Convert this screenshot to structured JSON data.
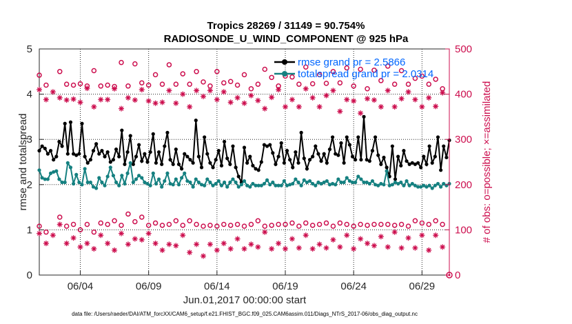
{
  "chart_data": {
    "type": "line",
    "title": "Tropics 28269 / 31149 = 90.754%",
    "subtitle": "RADIOSONDE_U_WIND_COMPONENT @ 925 hPa",
    "xlabel": "Jun.01,2017 00:00:00 start",
    "ylabel": "rmse and totalspread",
    "ylabel_right": "# of obs: o=possible; ×=assimilated",
    "footer": "data file: /Users/raeder/DAI/ATM_forcXX/CAM6_setup/f.e21.FHIST_BGC.f09_025.CAM6assim.011/Diags_NTrS_2017-06/obs_diag_output.nc",
    "x_ticks": [
      "06/04",
      "06/09",
      "06/14",
      "06/19",
      "06/24",
      "06/29"
    ],
    "x_tick_days": [
      4,
      9,
      14,
      19,
      24,
      29
    ],
    "xlim": [
      1.0,
      31.0
    ],
    "ylim": [
      0,
      5
    ],
    "y_ticks": [
      "0",
      "1",
      "2",
      "3",
      "4",
      "5"
    ],
    "ylim_right": [
      0,
      500
    ],
    "y_ticks_right": [
      "0",
      "100",
      "200",
      "300",
      "400",
      "500"
    ],
    "legend": [
      "rmse grand pr = 2.5866",
      "totalspread grand pr = 2.0314"
    ],
    "series": [
      {
        "name": "rmse",
        "color": "#000000",
        "values": [
          2.75,
          2.85,
          2.8,
          2.68,
          2.75,
          2.55,
          2.62,
          2.95,
          2.85,
          3.35,
          2.68,
          3.38,
          2.68,
          2.65,
          2.68,
          3.35,
          2.62,
          2.48,
          2.55,
          2.75,
          2.9,
          2.68,
          2.75,
          2.62,
          2.72,
          2.5,
          2.55,
          2.78,
          2.62,
          3.2,
          2.45,
          2.72,
          3.08,
          2.45,
          2.62,
          2.88,
          2.52,
          2.68,
          2.5,
          2.72,
          3.12,
          2.48,
          2.72,
          2.45,
          2.85,
          3.15,
          2.55,
          2.45,
          2.78,
          2.45,
          2.35,
          2.68,
          2.62,
          2.55,
          2.48,
          3.42,
          2.62,
          2.38,
          3.05,
          2.68,
          2.48,
          2.38,
          2.55,
          2.75,
          2.42,
          2.95,
          2.58,
          2.45,
          2.85,
          2.38,
          2.18,
          2.05,
          2.82,
          2.48,
          2.62,
          2.42,
          2.35,
          2.32,
          2.5,
          2.88,
          2.85,
          2.88,
          2.7,
          2.45,
          2.62,
          2.92,
          2.48,
          2.75,
          2.55,
          2.38,
          2.72,
          2.48,
          3.15,
          2.58,
          2.35,
          2.55,
          2.62,
          2.85,
          2.68,
          2.52,
          2.68,
          2.48,
          2.78,
          3.05,
          2.68,
          2.65,
          2.92,
          2.48,
          3.05,
          2.88,
          2.62,
          2.55,
          3.05,
          2.55,
          3.5,
          2.55,
          2.52,
          2.75,
          3.05,
          2.65,
          2.45,
          2.6,
          2.38,
          2.18,
          2.85,
          2.12,
          2.62,
          2.42,
          2.75,
          2.52,
          2.45,
          2.48,
          2.45,
          2.48,
          2.38,
          2.62,
          2.45,
          2.85,
          2.48,
          2.62,
          3.05,
          2.32,
          2.85,
          2.6,
          2.98
        ]
      },
      {
        "name": "totalspread",
        "color": "#158080",
        "values": [
          2.32,
          2.15,
          2.12,
          2.12,
          2.25,
          2.28,
          2.3,
          2.12,
          2.05,
          2.05,
          2.48,
          2.38,
          2.02,
          2.22,
          2.05,
          2.0,
          2.35,
          2.05,
          2.05,
          1.95,
          1.92,
          2.15,
          2.05,
          1.98,
          2.18,
          2.38,
          2.2,
          2.05,
          1.98,
          2.2,
          2.02,
          2.25,
          2.48,
          2.05,
          2.12,
          2.2,
          2.15,
          2.05,
          2.02,
          1.98,
          2.25,
          2.02,
          2.12,
          1.95,
          2.08,
          2.25,
          2.02,
          2.0,
          2.12,
          2.0,
          2.15,
          2.25,
          2.08,
          2.05,
          1.95,
          2.12,
          2.05,
          2.0,
          1.98,
          2.12,
          2.05,
          1.98,
          2.02,
          2.08,
          1.98,
          2.05,
          1.95,
          2.05,
          2.12,
          2.05,
          1.95,
          2.0,
          2.08,
          1.98,
          1.95,
          2.02,
          1.98,
          1.98,
          1.98,
          2.02,
          2.1,
          2.0,
          2.05,
          1.98,
          1.98,
          1.98,
          2.08,
          1.98,
          2.0,
          2.02,
          2.12,
          2.05,
          1.98,
          2.1,
          2.05,
          2.08,
          2.02,
          1.98,
          2.05,
          2.02,
          2.05,
          2.08,
          2.0,
          2.02,
          2.0,
          2.12,
          2.05,
          2.05,
          2.15,
          2.08,
          2.05,
          2.05,
          2.18,
          2.12,
          2.05,
          2.05,
          2.02,
          2.08,
          2.0,
          1.98,
          2.02,
          2.0,
          2.3,
          1.98,
          2.0,
          2.05,
          2.02,
          2.05,
          1.98,
          2.08,
          1.98,
          2.02,
          1.98,
          1.95,
          1.95,
          1.98,
          1.95,
          1.98,
          1.92,
          1.98,
          2.02,
          1.95,
          2.02,
          1.98,
          2.02
        ]
      }
    ],
    "possible_obs": {
      "high": [
        [
          1.0,
          442
        ],
        [
          1.5,
          420
        ],
        [
          2.5,
          450
        ],
        [
          3,
          422
        ],
        [
          3.5,
          420
        ],
        [
          4,
          423
        ],
        [
          4.5,
          418
        ],
        [
          5,
          452
        ],
        [
          5.5,
          418
        ],
        [
          6,
          420
        ],
        [
          6.5,
          417
        ],
        [
          7,
          470
        ],
        [
          7.5,
          418
        ],
        [
          8,
          467
        ],
        [
          8.5,
          425
        ],
        [
          9,
          420
        ],
        [
          9.5,
          443
        ],
        [
          10,
          422
        ],
        [
          10.5,
          465
        ],
        [
          11,
          422
        ],
        [
          11.5,
          445
        ],
        [
          12,
          422
        ],
        [
          12.5,
          450
        ],
        [
          13,
          427
        ],
        [
          13.5,
          418
        ],
        [
          14,
          450
        ],
        [
          14.5,
          425
        ],
        [
          15,
          428
        ],
        [
          15.5,
          420
        ],
        [
          16,
          443
        ],
        [
          16.5,
          412
        ],
        [
          17,
          422
        ],
        [
          17.5,
          455
        ],
        [
          18,
          437
        ],
        [
          18.5,
          418
        ],
        [
          19,
          440
        ],
        [
          19.5,
          438
        ],
        [
          20,
          422
        ],
        [
          20.5,
          460
        ],
        [
          21,
          423
        ],
        [
          21.5,
          443
        ],
        [
          22,
          424
        ],
        [
          22.5,
          450
        ],
        [
          23,
          425
        ],
        [
          23.5,
          458
        ],
        [
          24,
          418
        ],
        [
          24.5,
          455
        ],
        [
          25,
          412
        ],
        [
          25.5,
          453
        ],
        [
          26,
          430
        ],
        [
          26.5,
          462
        ],
        [
          27,
          422
        ],
        [
          27.5,
          452
        ],
        [
          28,
          422
        ],
        [
          28.5,
          435
        ],
        [
          29,
          440
        ],
        [
          29.5,
          422
        ],
        [
          30,
          433
        ],
        [
          30.5,
          412
        ]
      ],
      "low": [
        [
          1.0,
          108
        ],
        [
          1.5,
          95
        ],
        [
          2.5,
          128
        ],
        [
          3,
          108
        ],
        [
          3.5,
          112
        ],
        [
          4,
          100
        ],
        [
          4.5,
          112
        ],
        [
          5,
          95
        ],
        [
          5.5,
          115
        ],
        [
          6,
          112
        ],
        [
          6.5,
          120
        ],
        [
          7,
          110
        ],
        [
          7.5,
          135
        ],
        [
          8,
          118
        ],
        [
          8.5,
          128
        ],
        [
          9,
          110
        ],
        [
          9.5,
          115
        ],
        [
          10,
          110
        ],
        [
          10.5,
          112
        ],
        [
          11,
          120
        ],
        [
          11.5,
          110
        ],
        [
          12,
          120
        ],
        [
          12.5,
          112
        ],
        [
          13,
          108
        ],
        [
          13.5,
          110
        ],
        [
          14,
          108
        ],
        [
          14.5,
          112
        ],
        [
          15,
          110
        ],
        [
          15.5,
          112
        ],
        [
          16,
          108
        ],
        [
          16.5,
          112
        ],
        [
          17,
          120
        ],
        [
          17.5,
          108
        ],
        [
          18,
          110
        ],
        [
          18.5,
          112
        ],
        [
          19,
          112
        ],
        [
          19.5,
          115
        ],
        [
          20,
          108
        ],
        [
          20.5,
          115
        ],
        [
          21,
          110
        ],
        [
          21.5,
          112
        ],
        [
          22,
          115
        ],
        [
          22.5,
          108
        ],
        [
          23,
          115
        ],
        [
          23.5,
          112
        ],
        [
          24,
          108
        ],
        [
          24.5,
          112
        ],
        [
          25,
          110
        ],
        [
          25.5,
          112
        ],
        [
          26,
          112
        ],
        [
          26.5,
          112
        ],
        [
          27,
          110
        ],
        [
          27.5,
          112
        ],
        [
          28,
          108
        ],
        [
          28.5,
          120
        ],
        [
          29,
          115
        ],
        [
          29.5,
          112
        ],
        [
          30,
          120
        ],
        [
          30.5,
          112
        ]
      ]
    },
    "assimilated_obs": {
      "high": [
        [
          1.0,
          410
        ],
        [
          1.5,
          388
        ],
        [
          2,
          405
        ],
        [
          2.5,
          392
        ],
        [
          3,
          387
        ],
        [
          3.5,
          389
        ],
        [
          4,
          382
        ],
        [
          4.5,
          413
        ],
        [
          5,
          372
        ],
        [
          5.5,
          388
        ],
        [
          6,
          388
        ],
        [
          6.5,
          412
        ],
        [
          7,
          368
        ],
        [
          7.5,
          392
        ],
        [
          8,
          387
        ],
        [
          8.5,
          410
        ],
        [
          9,
          385
        ],
        [
          9.5,
          380
        ],
        [
          10,
          382
        ],
        [
          10.5,
          408
        ],
        [
          11,
          380
        ],
        [
          11.5,
          400
        ],
        [
          12,
          372
        ],
        [
          12.5,
          408
        ],
        [
          13,
          395
        ],
        [
          13.5,
          408
        ],
        [
          14,
          388
        ],
        [
          14.5,
          405
        ],
        [
          15,
          382
        ],
        [
          15.5,
          392
        ],
        [
          16,
          380
        ],
        [
          16.5,
          397
        ],
        [
          17,
          386
        ],
        [
          17.5,
          368
        ],
        [
          18,
          393
        ],
        [
          18.5,
          410
        ],
        [
          19,
          372
        ],
        [
          19.5,
          388
        ],
        [
          20,
          372
        ],
        [
          20.5,
          412
        ],
        [
          21,
          392
        ],
        [
          21.5,
          372
        ],
        [
          22,
          397
        ],
        [
          22.5,
          408
        ],
        [
          23,
          362
        ],
        [
          23.5,
          388
        ],
        [
          24,
          385
        ],
        [
          24.5,
          358
        ],
        [
          25,
          390
        ],
        [
          25.5,
          387
        ],
        [
          26,
          372
        ],
        [
          26.5,
          408
        ],
        [
          27,
          372
        ],
        [
          27.5,
          390
        ],
        [
          28,
          405
        ],
        [
          28.5,
          388
        ],
        [
          29,
          372
        ],
        [
          29.5,
          392
        ],
        [
          30,
          373
        ],
        [
          30.5,
          403
        ]
      ],
      "low": [
        [
          1.0,
          92
        ],
        [
          1.5,
          70
        ],
        [
          2,
          88
        ],
        [
          2.5,
          112
        ],
        [
          3,
          70
        ],
        [
          3.5,
          82
        ],
        [
          4,
          62
        ],
        [
          4.5,
          70
        ],
        [
          5,
          58
        ],
        [
          5.5,
          88
        ],
        [
          6,
          70
        ],
        [
          6.5,
          55
        ],
        [
          7,
          92
        ],
        [
          7.5,
          68
        ],
        [
          8,
          80
        ],
        [
          8.5,
          78
        ],
        [
          9,
          92
        ],
        [
          9.5,
          70
        ],
        [
          10,
          55
        ],
        [
          10.5,
          68
        ],
        [
          11,
          65
        ],
        [
          11.5,
          88
        ],
        [
          12,
          50
        ],
        [
          12.5,
          68
        ],
        [
          13,
          42
        ],
        [
          13.5,
          68
        ],
        [
          14,
          55
        ],
        [
          14.5,
          70
        ],
        [
          15,
          58
        ],
        [
          15.5,
          80
        ],
        [
          16,
          58
        ],
        [
          16.5,
          68
        ],
        [
          17,
          62
        ],
        [
          17.5,
          95
        ],
        [
          18,
          58
        ],
        [
          18.5,
          70
        ],
        [
          19,
          58
        ],
        [
          19.5,
          80
        ],
        [
          20,
          60
        ],
        [
          20.5,
          88
        ],
        [
          21,
          58
        ],
        [
          21.5,
          68
        ],
        [
          22,
          60
        ],
        [
          22.5,
          78
        ],
        [
          23,
          62
        ],
        [
          23.5,
          88
        ],
        [
          24,
          58
        ],
        [
          24.5,
          80
        ],
        [
          25,
          70
        ],
        [
          25.5,
          65
        ],
        [
          26,
          85
        ],
        [
          26.5,
          62
        ],
        [
          27,
          95
        ],
        [
          27.5,
          60
        ],
        [
          28,
          82
        ],
        [
          28.5,
          60
        ],
        [
          29,
          88
        ],
        [
          29.5,
          55
        ],
        [
          30,
          88
        ],
        [
          30.5,
          62
        ]
      ]
    }
  }
}
